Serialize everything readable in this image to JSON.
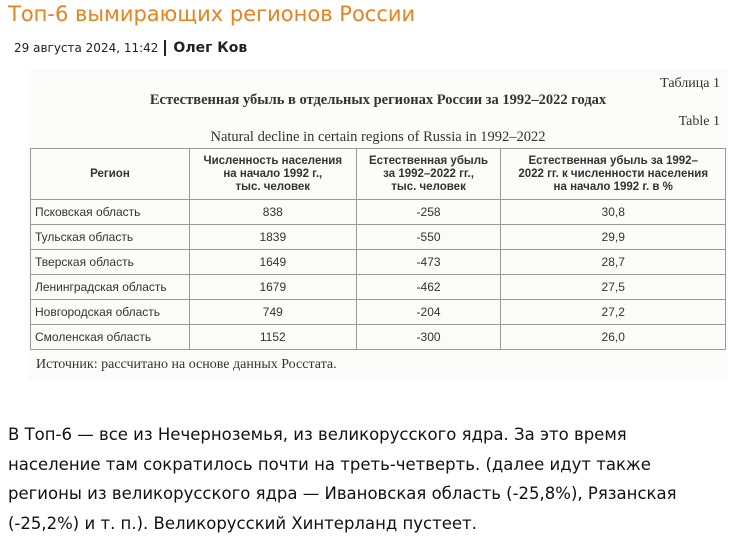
{
  "header": {
    "title": "Топ-6 вымирающих регионов России",
    "date": "29 августа 2024, 11:42",
    "author": "Олег Ков"
  },
  "figure": {
    "label_ru": "Таблица 1",
    "title_ru": "Естественная убыль в отдельных регионах России за 1992–2022 годах",
    "label_en": "Table 1",
    "title_en": "Natural decline in certain regions of Russia in 1992–2022",
    "table": {
      "columns": [
        "Регион",
        "Численность населения\nна начало 1992 г.,\nтыс. человек",
        "Естественная убыль\nза 1992–2022 гг.,\nтыс. человек",
        "Естественная убыль за 1992–\n2022 гг. к численности населения\nна начало 1992 г. в %"
      ],
      "rows": [
        [
          "Псковская область",
          "838",
          "-258",
          "30,8"
        ],
        [
          "Тульская область",
          "1839",
          "-550",
          "29,9"
        ],
        [
          "Тверская область",
          "1649",
          "-473",
          "28,7"
        ],
        [
          "Ленинградская область",
          "1679",
          "-462",
          "27,5"
        ],
        [
          "Новгородская область",
          "749",
          "-204",
          "27,2"
        ],
        [
          "Смоленская область",
          "1152",
          "-300",
          "26,0"
        ]
      ]
    },
    "source": "Источник: рассчитано на основе данных Росстата."
  },
  "article": {
    "lines": [
      "В Топ-6 — все из Нечерноземья, из великорусского ядра. За это время",
      "население там сократилось почти на треть-четверть. (далее идут также",
      "регионы из великорусского ядра — Ивановская область (-25,8%), Рязанская",
      "(-25,2%) и т. п.). Великорусский Хинтерланд пустеет."
    ]
  }
}
